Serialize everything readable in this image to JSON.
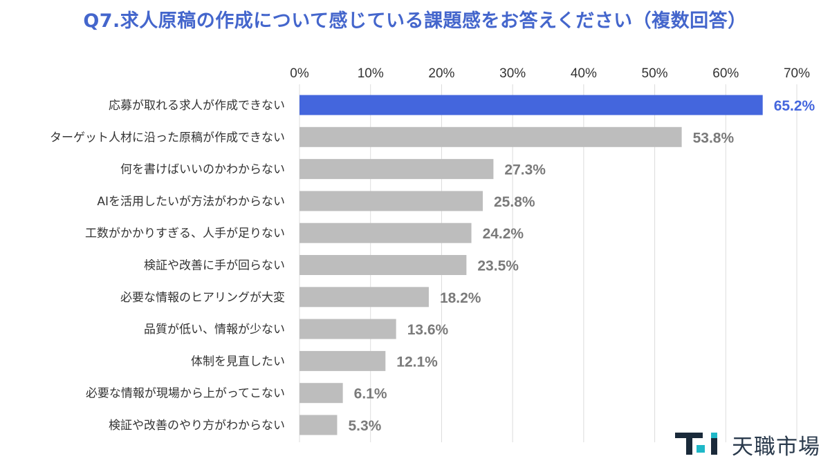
{
  "colors": {
    "title": "#4466cc",
    "highlight": "#4466dd",
    "bar": "#bdbdbd",
    "highlight_label": "#4466dd",
    "label": "#7a7a7a",
    "grid": "#dcdcdc",
    "logo_mark": "#1a2a3a",
    "logo_accent": "#1fb8c8"
  },
  "logo": {
    "text": "天職市場",
    "icon": "ti-logo-icon"
  },
  "chart_data": {
    "type": "bar",
    "orientation": "horizontal",
    "title": "Q7.求人原稿の作成について感じている課題感をお答えください（複数回答）",
    "xlim": [
      0,
      70
    ],
    "xticks": [
      "0%",
      "10%",
      "20%",
      "30%",
      "40%",
      "50%",
      "60%",
      "70%"
    ],
    "xtick_values": [
      0,
      10,
      20,
      30,
      40,
      50,
      60,
      70
    ],
    "grid": true,
    "legend": "none",
    "highlight_index": 0,
    "categories": [
      "応募が取れる求人が作成できない",
      "ターゲット人材に沿った原稿が作成できない",
      "何を書けばいいのかわからない",
      "AIを活用したいが方法がわからない",
      "工数がかかりすぎる、人手が足りない",
      "検証や改善に手が回らない",
      "必要な情報のヒアリングが大変",
      "品質が低い、情報が少ない",
      "体制を見直したい",
      "必要な情報が現場から上がってこない",
      "検証や改善のやり方がわからない"
    ],
    "values": [
      65.2,
      53.8,
      27.3,
      25.8,
      24.2,
      23.5,
      18.2,
      13.6,
      12.1,
      6.1,
      5.3
    ],
    "value_labels": [
      "65.2%",
      "53.8%",
      "27.3%",
      "25.8%",
      "24.2%",
      "23.5%",
      "18.2%",
      "13.6%",
      "12.1%",
      "6.1%",
      "5.3%"
    ]
  }
}
